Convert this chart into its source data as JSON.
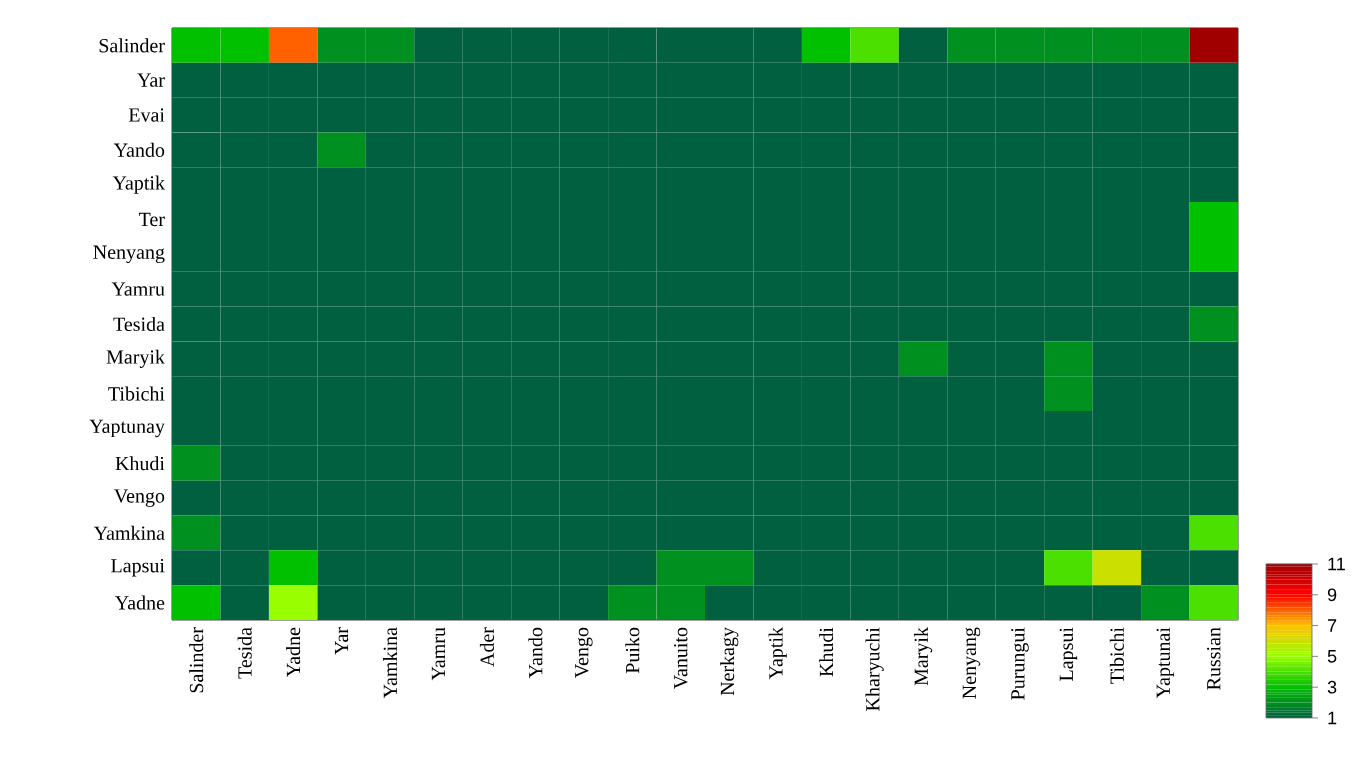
{
  "chart_data": {
    "type": "heatmap",
    "categories": [
      "Salinder",
      "Tesida",
      "Yadne",
      "Yar",
      "Yamkina",
      "Yamru",
      "Ader",
      "Yando",
      "Vengo",
      "Puiko",
      "Vanuito",
      "Nerkagy",
      "Yaptik",
      "Khudi",
      "Kharyuchi",
      "Maryik",
      "Nenyang",
      "Purungui",
      "Lapsui",
      "Tibichi",
      "Yaptunai",
      "Russian"
    ],
    "y_categories": [
      "Salinder",
      "Yar",
      "Evai",
      "Yando",
      "Yaptik",
      "Ter",
      "Nenyang",
      "Yamru",
      "Tesida",
      "Maryik",
      "Tibichi",
      "Yaptunay",
      "Khudi",
      "Vengo",
      "Yamkina",
      "Lapsui",
      "Yadne"
    ],
    "cells": [
      [
        3,
        3,
        8,
        2,
        2,
        1,
        1,
        1,
        1,
        1,
        1,
        1,
        1,
        3,
        4,
        1,
        2,
        2,
        2,
        2,
        2,
        11
      ],
      [
        1,
        1,
        1,
        1,
        1,
        1,
        1,
        1,
        1,
        1,
        1,
        1,
        1,
        1,
        1,
        1,
        1,
        1,
        1,
        1,
        1,
        1
      ],
      [
        1,
        1,
        1,
        1,
        1,
        1,
        1,
        1,
        1,
        1,
        1,
        1,
        1,
        1,
        1,
        1,
        1,
        1,
        1,
        1,
        1,
        1
      ],
      [
        1,
        1,
        1,
        2,
        1,
        1,
        1,
        1,
        1,
        1,
        1,
        1,
        1,
        1,
        1,
        1,
        1,
        1,
        1,
        1,
        1,
        1
      ],
      [
        1,
        1,
        1,
        1,
        1,
        1,
        1,
        1,
        1,
        1,
        1,
        1,
        1,
        1,
        1,
        1,
        1,
        1,
        1,
        1,
        1,
        1
      ],
      [
        1,
        1,
        1,
        1,
        1,
        1,
        1,
        1,
        1,
        1,
        1,
        1,
        1,
        1,
        1,
        1,
        1,
        1,
        1,
        1,
        1,
        3
      ],
      [
        1,
        1,
        1,
        1,
        1,
        1,
        1,
        1,
        1,
        1,
        1,
        1,
        1,
        1,
        1,
        1,
        1,
        1,
        1,
        1,
        1,
        3
      ],
      [
        1,
        1,
        1,
        1,
        1,
        1,
        1,
        1,
        1,
        1,
        1,
        1,
        1,
        1,
        1,
        1,
        1,
        1,
        1,
        1,
        1,
        1
      ],
      [
        1,
        1,
        1,
        1,
        1,
        1,
        1,
        1,
        1,
        1,
        1,
        1,
        1,
        1,
        1,
        1,
        1,
        1,
        1,
        1,
        1,
        2
      ],
      [
        1,
        1,
        1,
        1,
        1,
        1,
        1,
        1,
        1,
        1,
        1,
        1,
        1,
        1,
        1,
        2,
        1,
        1,
        2,
        1,
        1,
        1
      ],
      [
        1,
        1,
        1,
        1,
        1,
        1,
        1,
        1,
        1,
        1,
        1,
        1,
        1,
        1,
        1,
        1,
        1,
        1,
        2,
        1,
        1,
        1
      ],
      [
        1,
        1,
        1,
        1,
        1,
        1,
        1,
        1,
        1,
        1,
        1,
        1,
        1,
        1,
        1,
        1,
        1,
        1,
        1,
        1,
        1,
        1
      ],
      [
        2,
        1,
        1,
        1,
        1,
        1,
        1,
        1,
        1,
        1,
        1,
        1,
        1,
        1,
        1,
        1,
        1,
        1,
        1,
        1,
        1,
        1
      ],
      [
        1,
        1,
        1,
        1,
        1,
        1,
        1,
        1,
        1,
        1,
        1,
        1,
        1,
        1,
        1,
        1,
        1,
        1,
        1,
        1,
        1,
        1
      ],
      [
        2,
        1,
        1,
        1,
        1,
        1,
        1,
        1,
        1,
        1,
        1,
        1,
        1,
        1,
        1,
        1,
        1,
        1,
        1,
        1,
        1,
        4
      ],
      [
        1,
        1,
        3,
        1,
        1,
        1,
        1,
        1,
        1,
        1,
        2,
        2,
        1,
        1,
        1,
        1,
        1,
        1,
        4,
        6,
        1,
        1
      ],
      [
        3,
        1,
        5,
        1,
        1,
        1,
        1,
        1,
        1,
        2,
        2,
        1,
        1,
        1,
        1,
        1,
        1,
        1,
        1,
        1,
        2,
        4
      ]
    ],
    "clim": [
      1,
      11
    ],
    "cticks": [
      1,
      3,
      5,
      7,
      9,
      11
    ]
  }
}
